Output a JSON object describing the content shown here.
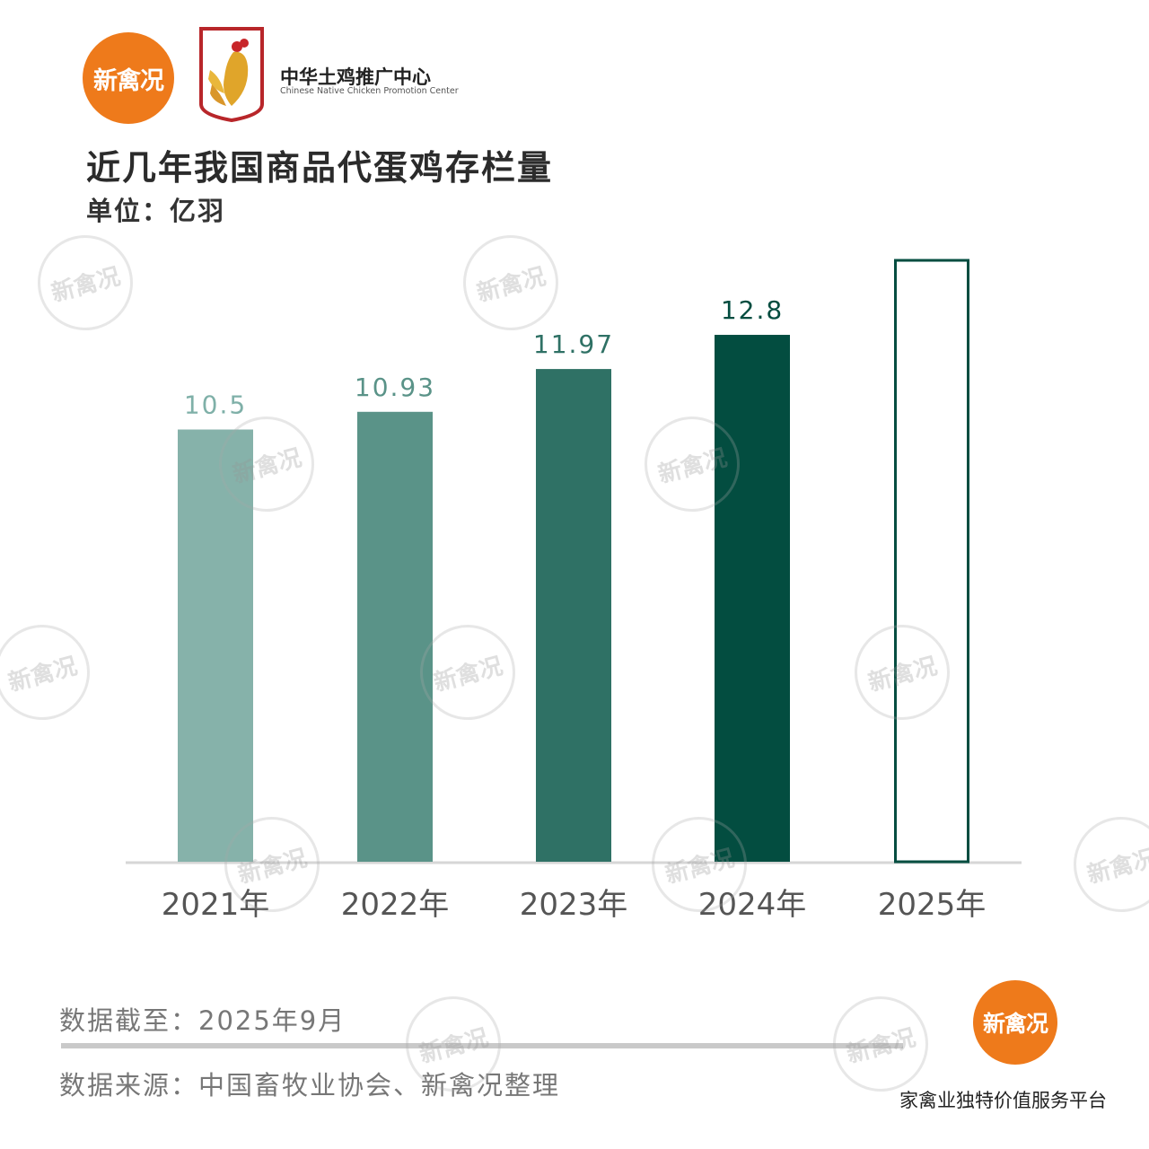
{
  "header": {
    "logo_text": "新禽况",
    "org_name_zh": "中华土鸡推广中心",
    "org_name_en": "Chinese Native Chicken Promotion Center"
  },
  "watermark_text": "新禽况",
  "chart_data": {
    "type": "bar",
    "title": "近几年我国商品代蛋鸡存栏量",
    "unit_label": "单位：亿羽",
    "categories": [
      "2021年",
      "2022年",
      "2023年",
      "2024年",
      "2025年"
    ],
    "values": [
      10.5,
      10.93,
      11.97,
      12.8,
      null
    ],
    "data_labels": [
      "10.5",
      "10.93",
      "11.97",
      "12.8",
      ""
    ],
    "ylim": [
      0,
      14.0
    ],
    "grid": false,
    "bar_colors": [
      "#86b2aa",
      "#5a9388",
      "#2f7165",
      "#034d40",
      "#ffffff"
    ],
    "outline_color": "#034d40",
    "label_colors": [
      "#7fb0a8",
      "#5a9388",
      "#2f7165",
      "#034d40",
      "#034d40"
    ]
  },
  "footer": {
    "date_text": "数据截至：2025年9月",
    "source_text": "数据来源：中国畜牧业协会、新禽况整理",
    "logo_text": "新禽况",
    "slogan": "家禽业独特价值服务平台"
  }
}
